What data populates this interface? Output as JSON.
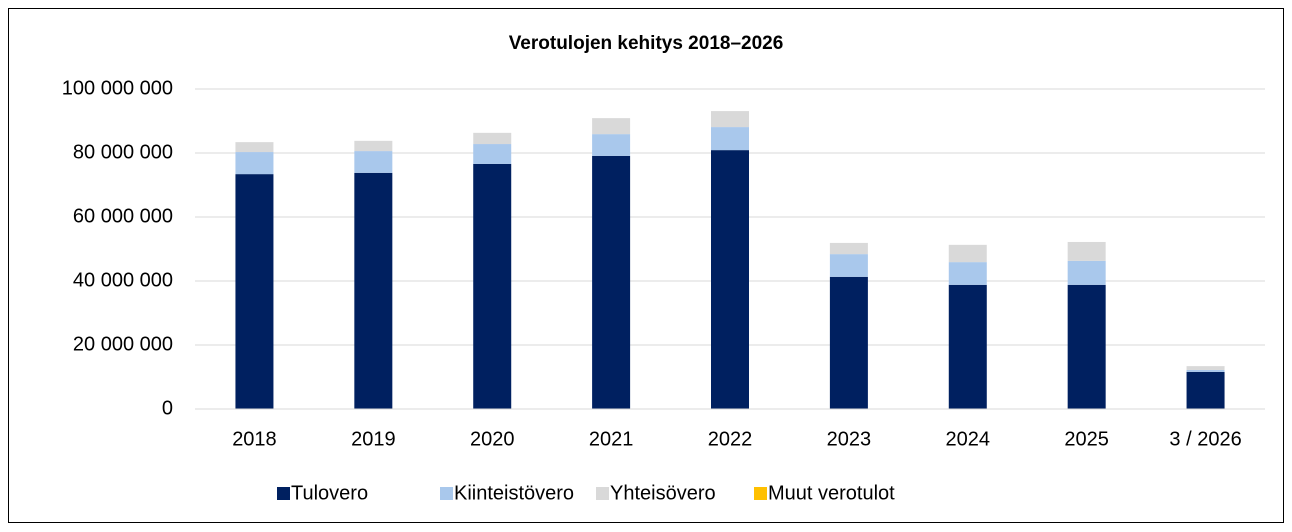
{
  "chart_data": {
    "type": "stacked_bar",
    "title": "Verotulojen kehitys 2018–2026",
    "categories": [
      "2018",
      "2019",
      "2020",
      "2021",
      "2022",
      "2023",
      "2024",
      "2025",
      "3 / 2026"
    ],
    "series": [
      {
        "name": "Tulovero",
        "color": "#002060",
        "values": [
          73400000,
          73800000,
          76600000,
          79100000,
          80900000,
          41300000,
          38800000,
          38800000,
          11600000
        ]
      },
      {
        "name": "Kiinteistövero",
        "color": "#a9c8ec",
        "values": [
          6900000,
          6800000,
          6200000,
          6800000,
          7200000,
          7100000,
          7100000,
          7500000,
          600000
        ]
      },
      {
        "name": "Yhteisövero",
        "color": "#d9d9d9",
        "values": [
          3100000,
          3200000,
          3500000,
          5000000,
          5000000,
          3500000,
          5400000,
          5900000,
          1200000
        ]
      },
      {
        "name": "Muut verotulot",
        "color": "#ffc000",
        "values": [
          0,
          0,
          0,
          0,
          0,
          0,
          0,
          0,
          0
        ]
      }
    ],
    "ylim": [
      0,
      100000000
    ],
    "yticks": [
      0,
      {
        "value": 20000000,
        "label": "20 000 000"
      },
      {
        "value": 40000000,
        "label": "40 000 000"
      },
      {
        "value": 60000000,
        "label": "60 000 000"
      },
      {
        "value": 80000000,
        "label": "80 000 000"
      },
      {
        "value": 100000000,
        "label": "100 000 000"
      }
    ],
    "grid": true,
    "legend": "bottom"
  }
}
